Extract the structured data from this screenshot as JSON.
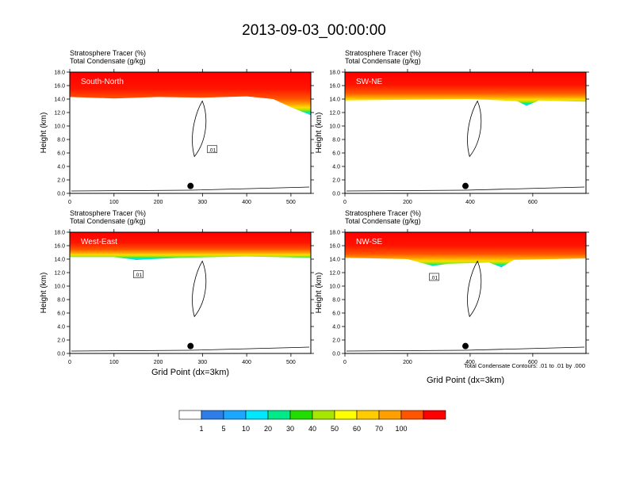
{
  "title": "2013-09-03_00:00:00",
  "panel_header": {
    "line1": "Stratosphere Tracer   (%)",
    "line2": "Total Condensate   (g/kg)"
  },
  "ylabel": "Height (km)",
  "xlabel": "Grid Point (dx=3km)",
  "contour_note": "Total Condensate Contours: .01 to .01 by .000",
  "contour_label": ".01",
  "colors": {
    "tracer_levels": [
      "#ffffff",
      "#2f7de8",
      "#1ca7ff",
      "#00e7ff",
      "#00ea8a",
      "#22dd00",
      "#a7e600",
      "#ffff00",
      "#ffcc00",
      "#ff9f00",
      "#ff5500",
      "#ff0000"
    ],
    "contour": "#000000",
    "marker": "#000000"
  },
  "chart_data": [
    {
      "type": "contour",
      "panel_label": "South-North",
      "xlim": [
        0,
        545
      ],
      "ylim": [
        0,
        18
      ],
      "xticks": [
        0,
        100,
        200,
        300,
        400,
        500
      ],
      "yticks": [
        "0.0",
        "2.0",
        "4.0",
        "6.0",
        "8.0",
        "10.0",
        "12.0",
        "14.0",
        "16.0",
        "18.0"
      ],
      "tropopause_km": [
        [
          0,
          14.3
        ],
        [
          100,
          14.1
        ],
        [
          200,
          14.3
        ],
        [
          300,
          14.2
        ],
        [
          400,
          14.4
        ],
        [
          460,
          14.0
        ],
        [
          500,
          12.8
        ],
        [
          545,
          11.6
        ]
      ],
      "marker_x": 273,
      "contour_label_pos": [
        322,
        6.5
      ]
    },
    {
      "type": "contour",
      "panel_label": "SW-NE",
      "xlim": [
        0,
        770
      ],
      "ylim": [
        0,
        18
      ],
      "xticks": [
        0,
        200,
        400,
        600
      ],
      "yticks": [
        "0.0",
        "2.0",
        "4.0",
        "6.0",
        "8.0",
        "10.0",
        "12.0",
        "14.0",
        "16.0",
        "18.0"
      ],
      "tropopause_km": [
        [
          0,
          13.8
        ],
        [
          200,
          13.9
        ],
        [
          400,
          14.0
        ],
        [
          550,
          13.7
        ],
        [
          580,
          13.0
        ],
        [
          620,
          13.8
        ],
        [
          770,
          13.6
        ]
      ],
      "marker_x": 385,
      "contour_label_pos": null
    },
    {
      "type": "contour",
      "panel_label": "West-East",
      "xlim": [
        0,
        545
      ],
      "ylim": [
        0,
        18
      ],
      "xticks": [
        0,
        100,
        200,
        300,
        400,
        500
      ],
      "yticks": [
        "0.0",
        "2.0",
        "4.0",
        "6.0",
        "8.0",
        "10.0",
        "12.0",
        "14.0",
        "16.0",
        "18.0"
      ],
      "tropopause_km": [
        [
          0,
          14.3
        ],
        [
          100,
          14.3
        ],
        [
          150,
          13.9
        ],
        [
          250,
          14.2
        ],
        [
          400,
          14.4
        ],
        [
          545,
          14.2
        ]
      ],
      "marker_x": 273,
      "contour_label_pos": [
        155,
        11.7
      ]
    },
    {
      "type": "contour",
      "panel_label": "NW-SE",
      "xlim": [
        0,
        770
      ],
      "ylim": [
        0,
        18
      ],
      "xticks": [
        0,
        200,
        400,
        600
      ],
      "yticks": [
        "0.0",
        "2.0",
        "4.0",
        "6.0",
        "8.0",
        "10.0",
        "12.0",
        "14.0",
        "16.0",
        "18.0"
      ],
      "tropopause_km": [
        [
          0,
          14.2
        ],
        [
          200,
          14.0
        ],
        [
          280,
          13.0
        ],
        [
          330,
          13.3
        ],
        [
          460,
          13.5
        ],
        [
          500,
          12.8
        ],
        [
          540,
          13.9
        ],
        [
          770,
          14.1
        ]
      ],
      "marker_x": 385,
      "contour_label_pos": [
        285,
        11.3
      ]
    }
  ],
  "colorbar": {
    "labels": [
      "1",
      "5",
      "10",
      "20",
      "30",
      "40",
      "50",
      "60",
      "70",
      "100"
    ]
  }
}
